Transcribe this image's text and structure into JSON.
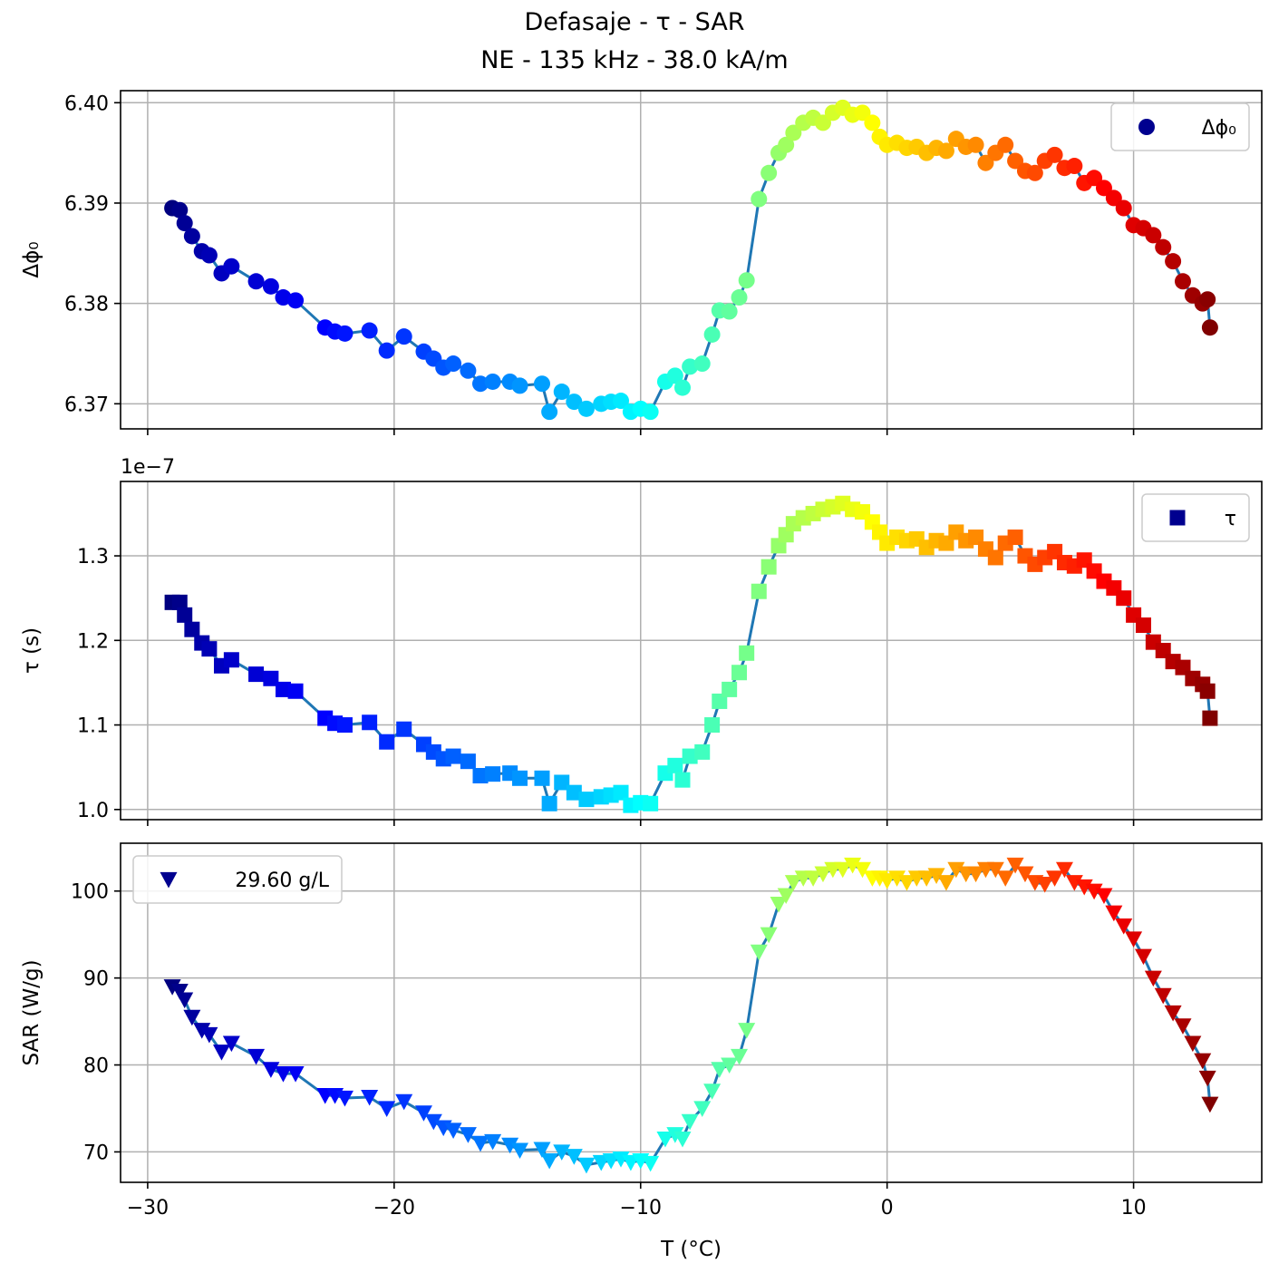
{
  "figure": {
    "title_line1": "Defasaje - τ - SAR",
    "title_line2": "NE - 135 kHz - 38.0 kA/m"
  },
  "colors": {
    "line": "#1f77b4",
    "grid": "#b0b0b0",
    "colormap": "jet"
  },
  "chart_data": [
    {
      "type": "line",
      "marker": "circle",
      "ylabel": "Δϕ₀",
      "ylim": [
        6.3675,
        6.4012
      ],
      "yticks": [
        6.37,
        6.38,
        6.39,
        6.4
      ],
      "ytick_labels": [
        "6.37",
        "6.38",
        "6.39",
        "6.40"
      ],
      "legend": {
        "label": "Δϕ₀",
        "position": "upper right"
      },
      "series": [
        {
          "x": [
            -29.0,
            -28.7,
            -28.5,
            -28.2,
            -27.8,
            -27.5,
            -27.0,
            -26.6,
            -25.6,
            -25.0,
            -24.5,
            -24.0,
            -22.8,
            -22.4,
            -22.0,
            -21.0,
            -20.3,
            -19.6,
            -18.8,
            -18.4,
            -18.0,
            -17.6,
            -17.0,
            -16.5,
            -16.0,
            -15.3,
            -14.9,
            -14.0,
            -13.7,
            -13.2,
            -12.7,
            -12.2,
            -11.6,
            -11.2,
            -10.8,
            -10.4,
            -10.0,
            -9.6,
            -9.0,
            -8.6,
            -8.3,
            -8.0,
            -7.5,
            -7.1,
            -6.8,
            -6.4,
            -6.0,
            -5.7,
            -5.2,
            -4.8,
            -4.4,
            -4.1,
            -3.8,
            -3.4,
            -3.0,
            -2.6,
            -2.2,
            -1.8,
            -1.4,
            -1.0,
            -0.6,
            -0.3,
            0.0,
            0.4,
            0.8,
            1.2,
            1.6,
            2.0,
            2.4,
            2.8,
            3.2,
            3.6,
            4.0,
            4.4,
            4.8,
            5.2,
            5.6,
            6.0,
            6.4,
            6.8,
            7.2,
            7.6,
            8.0,
            8.4,
            8.8,
            9.2,
            9.6,
            10.0,
            10.4,
            10.8,
            11.2,
            11.6,
            12.0,
            12.4,
            12.8,
            13.0,
            13.1
          ],
          "y": [
            6.3895,
            6.3893,
            6.388,
            6.3867,
            6.3852,
            6.3848,
            6.383,
            6.3837,
            6.3822,
            6.3817,
            6.3806,
            6.3803,
            6.3776,
            6.3772,
            6.377,
            6.3773,
            6.3753,
            6.3767,
            6.3752,
            6.3745,
            6.3736,
            6.374,
            6.3733,
            6.372,
            6.3722,
            6.3722,
            6.3718,
            6.372,
            6.3692,
            6.3712,
            6.3702,
            6.3695,
            6.37,
            6.3702,
            6.3703,
            6.3692,
            6.3695,
            6.3692,
            6.3722,
            6.3728,
            6.3716,
            6.3737,
            6.374,
            6.3769,
            6.3793,
            6.3792,
            6.3806,
            6.3823,
            6.3904,
            6.393,
            6.395,
            6.3958,
            6.397,
            6.398,
            6.3985,
            6.398,
            6.399,
            6.3995,
            6.3988,
            6.399,
            6.398,
            6.3966,
            6.3958,
            6.396,
            6.3955,
            6.3956,
            6.395,
            6.3955,
            6.3952,
            6.3964,
            6.3956,
            6.3958,
            6.394,
            6.395,
            6.3958,
            6.3942,
            6.3932,
            6.393,
            6.3942,
            6.3948,
            6.3935,
            6.3937,
            6.392,
            6.3925,
            6.3915,
            6.3905,
            6.3895,
            6.3878,
            6.3875,
            6.3868,
            6.3856,
            6.3842,
            6.3822,
            6.3808,
            6.38,
            6.3804,
            6.3776
          ]
        }
      ]
    },
    {
      "type": "line",
      "marker": "square",
      "ylabel": "τ (s)",
      "offset_text": "1e−7",
      "ylim": [
        0.988,
        1.388
      ],
      "yticks": [
        1.0,
        1.1,
        1.2,
        1.3
      ],
      "ytick_labels": [
        "1.0",
        "1.1",
        "1.2",
        "1.3"
      ],
      "legend": {
        "label": "τ",
        "position": "upper right"
      },
      "series": [
        {
          "x": [
            -29.0,
            -28.7,
            -28.5,
            -28.2,
            -27.8,
            -27.5,
            -27.0,
            -26.6,
            -25.6,
            -25.0,
            -24.5,
            -24.0,
            -22.8,
            -22.4,
            -22.0,
            -21.0,
            -20.3,
            -19.6,
            -18.8,
            -18.4,
            -18.0,
            -17.6,
            -17.0,
            -16.5,
            -16.0,
            -15.3,
            -14.9,
            -14.0,
            -13.7,
            -13.2,
            -12.7,
            -12.2,
            -11.6,
            -11.2,
            -10.8,
            -10.4,
            -10.0,
            -9.6,
            -9.0,
            -8.6,
            -8.3,
            -8.0,
            -7.5,
            -7.1,
            -6.8,
            -6.4,
            -6.0,
            -5.7,
            -5.2,
            -4.8,
            -4.4,
            -4.1,
            -3.8,
            -3.4,
            -3.0,
            -2.6,
            -2.2,
            -1.8,
            -1.4,
            -1.0,
            -0.6,
            -0.3,
            0.0,
            0.4,
            0.8,
            1.2,
            1.6,
            2.0,
            2.4,
            2.8,
            3.2,
            3.6,
            4.0,
            4.4,
            4.8,
            5.2,
            5.6,
            6.0,
            6.4,
            6.8,
            7.2,
            7.6,
            8.0,
            8.4,
            8.8,
            9.2,
            9.6,
            10.0,
            10.4,
            10.8,
            11.2,
            11.6,
            12.0,
            12.4,
            12.8,
            13.0,
            13.1
          ],
          "y": [
            1.245,
            1.245,
            1.23,
            1.213,
            1.197,
            1.19,
            1.17,
            1.177,
            1.16,
            1.155,
            1.142,
            1.14,
            1.108,
            1.102,
            1.1,
            1.103,
            1.08,
            1.095,
            1.077,
            1.068,
            1.06,
            1.063,
            1.057,
            1.04,
            1.042,
            1.043,
            1.037,
            1.037,
            1.007,
            1.032,
            1.02,
            1.012,
            1.015,
            1.017,
            1.02,
            1.005,
            1.008,
            1.007,
            1.043,
            1.052,
            1.035,
            1.063,
            1.068,
            1.1,
            1.128,
            1.142,
            1.162,
            1.185,
            1.258,
            1.287,
            1.312,
            1.325,
            1.338,
            1.345,
            1.35,
            1.355,
            1.358,
            1.362,
            1.355,
            1.352,
            1.34,
            1.328,
            1.315,
            1.322,
            1.318,
            1.32,
            1.31,
            1.318,
            1.315,
            1.328,
            1.318,
            1.322,
            1.308,
            1.298,
            1.315,
            1.322,
            1.3,
            1.29,
            1.298,
            1.305,
            1.292,
            1.288,
            1.295,
            1.282,
            1.27,
            1.262,
            1.25,
            1.23,
            1.218,
            1.198,
            1.188,
            1.175,
            1.168,
            1.155,
            1.148,
            1.14,
            1.108
          ]
        }
      ]
    },
    {
      "type": "line",
      "marker": "triangle-down",
      "xlabel": "T (°C)",
      "ylabel": "SAR (W/g)",
      "xlim": [
        -31.1,
        15.2
      ],
      "xticks": [
        -30,
        -20,
        -10,
        0,
        10
      ],
      "xtick_labels": [
        "−30",
        "−20",
        "−10",
        "0",
        "10"
      ],
      "ylim": [
        66.5,
        105.5
      ],
      "yticks": [
        70,
        80,
        90,
        100
      ],
      "ytick_labels": [
        "70",
        "80",
        "90",
        "100"
      ],
      "legend": {
        "label": "29.60 g/L",
        "position": "upper left"
      },
      "series": [
        {
          "x": [
            -29.0,
            -28.7,
            -28.5,
            -28.2,
            -27.8,
            -27.5,
            -27.0,
            -26.6,
            -25.6,
            -25.0,
            -24.5,
            -24.0,
            -22.8,
            -22.4,
            -22.0,
            -21.0,
            -20.3,
            -19.6,
            -18.8,
            -18.4,
            -18.0,
            -17.6,
            -17.0,
            -16.5,
            -16.0,
            -15.3,
            -14.9,
            -14.0,
            -13.7,
            -13.2,
            -12.7,
            -12.2,
            -11.6,
            -11.2,
            -10.8,
            -10.4,
            -10.0,
            -9.6,
            -9.0,
            -8.6,
            -8.3,
            -8.0,
            -7.5,
            -7.1,
            -6.8,
            -6.4,
            -6.0,
            -5.7,
            -5.2,
            -4.8,
            -4.4,
            -4.1,
            -3.8,
            -3.4,
            -3.0,
            -2.6,
            -2.2,
            -1.8,
            -1.4,
            -1.0,
            -0.6,
            -0.3,
            0.0,
            0.4,
            0.8,
            1.2,
            1.6,
            2.0,
            2.4,
            2.8,
            3.2,
            3.6,
            4.0,
            4.4,
            4.8,
            5.2,
            5.6,
            6.0,
            6.4,
            6.8,
            7.2,
            7.6,
            8.0,
            8.4,
            8.8,
            9.2,
            9.6,
            10.0,
            10.4,
            10.8,
            11.2,
            11.6,
            12.0,
            12.4,
            12.8,
            13.0,
            13.1
          ],
          "y": [
            89.0,
            88.5,
            87.5,
            85.5,
            84.0,
            83.5,
            81.5,
            82.5,
            81.0,
            79.5,
            79.0,
            79.0,
            76.5,
            76.5,
            76.2,
            76.3,
            75.0,
            75.8,
            74.5,
            73.5,
            72.8,
            72.5,
            72.0,
            71.0,
            71.2,
            70.8,
            70.2,
            70.3,
            69.0,
            70.0,
            69.5,
            68.5,
            68.8,
            69.0,
            69.2,
            68.8,
            69.0,
            68.7,
            71.5,
            72.0,
            71.5,
            73.5,
            75.0,
            77.0,
            79.5,
            80.0,
            81.0,
            84.0,
            93.0,
            95.0,
            98.5,
            99.5,
            101.0,
            101.5,
            101.5,
            102.0,
            102.5,
            102.5,
            103.0,
            102.5,
            101.5,
            101.5,
            101.2,
            101.5,
            101.0,
            101.5,
            101.5,
            101.8,
            101.0,
            102.5,
            102.0,
            102.0,
            102.5,
            102.5,
            101.5,
            103.0,
            102.0,
            101.0,
            100.8,
            101.5,
            102.5,
            101.0,
            100.5,
            100.0,
            99.5,
            97.5,
            96.0,
            94.5,
            92.5,
            90.0,
            88.0,
            86.0,
            84.5,
            82.5,
            80.5,
            78.5,
            75.5
          ]
        }
      ]
    }
  ]
}
